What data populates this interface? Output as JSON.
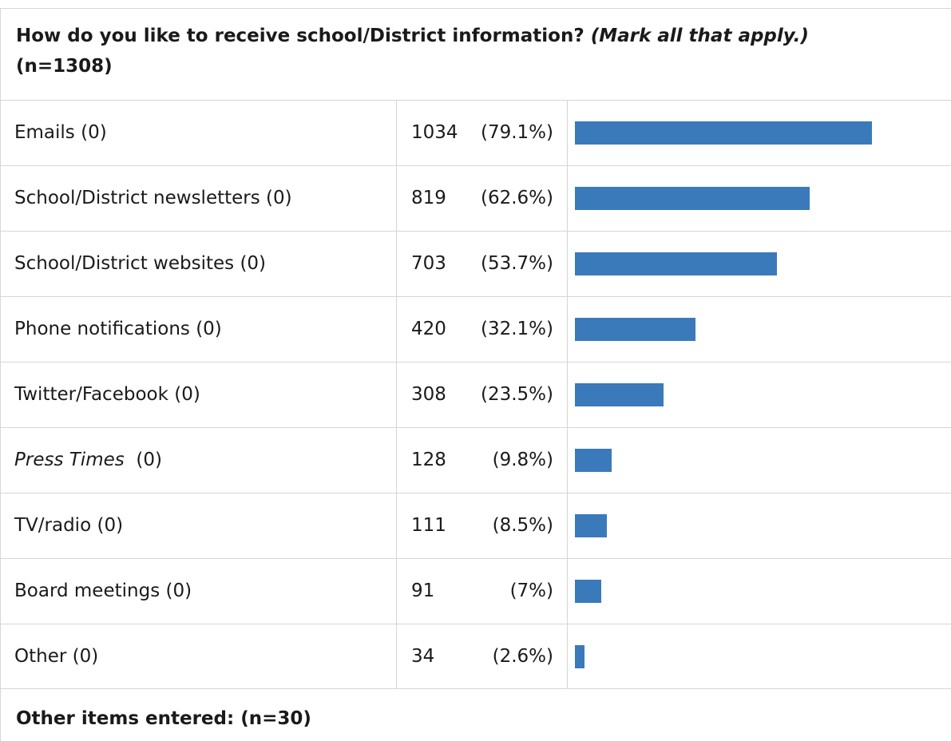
{
  "question": {
    "text": "How do you like to receive school/District information?",
    "note": "(Mark all that apply.)",
    "n": "(n=1308)"
  },
  "chart_data": {
    "type": "bar",
    "orientation": "horizontal",
    "categories": [
      "Emails (0)",
      "School/District newsletters (0)",
      "School/District websites (0)",
      "Phone notifications (0)",
      "Twitter/Facebook (0)",
      "Press Times (0)",
      "TV/radio (0)",
      "Board meetings (0)",
      "Other (0)"
    ],
    "rows": [
      {
        "label": "Emails",
        "suffix": "(0)",
        "italic": false,
        "count": "1034",
        "percent_label": "(79.1%)",
        "percent": 79.1
      },
      {
        "label": "School/District newsletters",
        "suffix": "(0)",
        "italic": false,
        "count": "819",
        "percent_label": "(62.6%)",
        "percent": 62.6
      },
      {
        "label": "School/District websites",
        "suffix": "(0)",
        "italic": false,
        "count": "703",
        "percent_label": "(53.7%)",
        "percent": 53.7
      },
      {
        "label": "Phone notifications",
        "suffix": "(0)",
        "italic": false,
        "count": "420",
        "percent_label": "(32.1%)",
        "percent": 32.1
      },
      {
        "label": "Twitter/Facebook",
        "suffix": "(0)",
        "italic": false,
        "count": "308",
        "percent_label": "(23.5%)",
        "percent": 23.5
      },
      {
        "label": "Press Times",
        "suffix": "(0)",
        "italic": true,
        "count": "128",
        "percent_label": "(9.8%)",
        "percent": 9.8
      },
      {
        "label": "TV/radio",
        "suffix": "(0)",
        "italic": false,
        "count": "111",
        "percent_label": "(8.5%)",
        "percent": 8.5
      },
      {
        "label": "Board meetings",
        "suffix": "(0)",
        "italic": false,
        "count": "91",
        "percent_label": "(7%)",
        "percent": 7
      },
      {
        "label": "Other",
        "suffix": "(0)",
        "italic": false,
        "count": "34",
        "percent_label": "(2.6%)",
        "percent": 2.6
      }
    ],
    "values": [
      1034,
      819,
      703,
      420,
      308,
      128,
      111,
      91,
      34
    ],
    "bar_color": "#3a7aba"
  },
  "footer": {
    "text": "Other items entered: (n=30)"
  }
}
